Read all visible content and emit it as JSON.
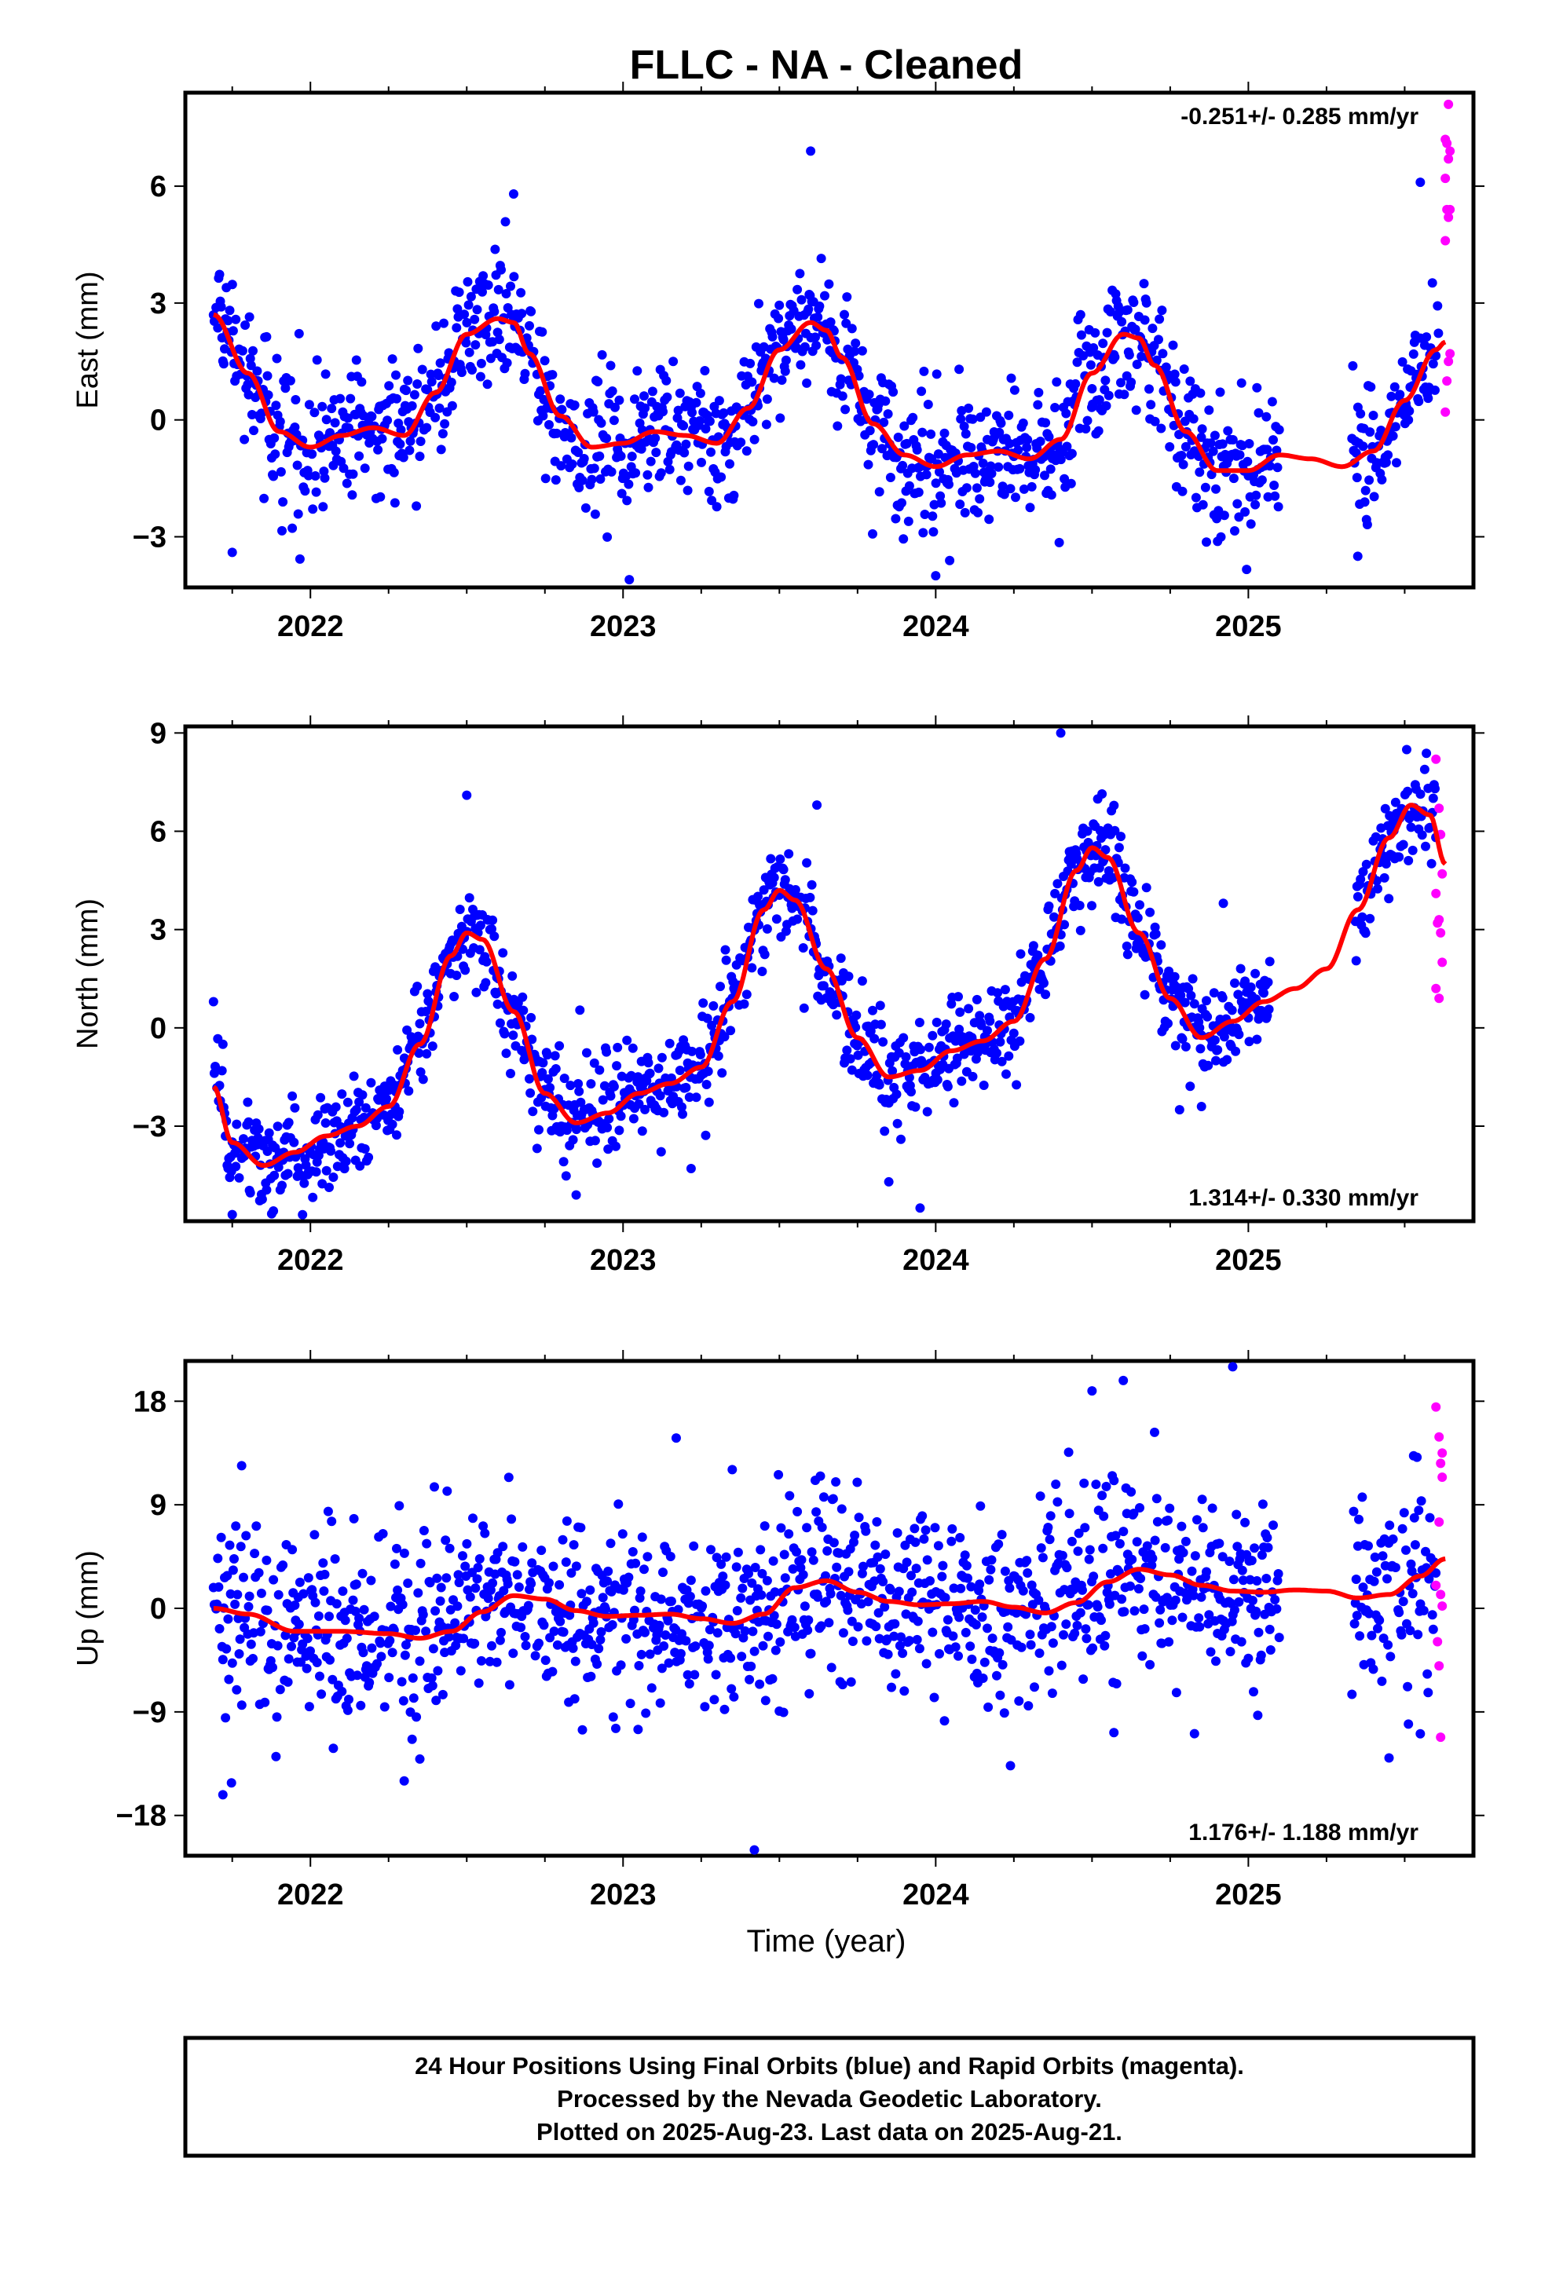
{
  "title": "FLLC  - NA - Cleaned",
  "xlabel": "Time (year)",
  "footer": {
    "line1": "24 Hour Positions Using Final Orbits (blue) and Rapid Orbits (magenta).",
    "line2": "Processed by the Nevada Geodetic Laboratory.",
    "line3": "Plotted on 2025-Aug-23. Last data on 2025-Aug-21."
  },
  "colors": {
    "final": "#0000ff",
    "rapid": "#ff00ff",
    "fit": "#ff0000",
    "frame": "#000000"
  },
  "chart_data": [
    {
      "type": "scatter",
      "panel": "east",
      "ylabel": "East (mm)",
      "rate": "-0.251+/- 0.285 mm/yr",
      "rate_placement": "top-right",
      "xlim": [
        2021.6,
        2025.72
      ],
      "ylim": [
        -4.3,
        8.4
      ],
      "yticks": [
        -3,
        0,
        3,
        6
      ],
      "ytick_labels": [
        "−3",
        "0",
        "3",
        "6"
      ],
      "xticks": [
        2022,
        2023,
        2024,
        2025
      ],
      "xtick_labels": [
        "2022",
        "2023",
        "2024",
        "2025"
      ],
      "grid": false,
      "fit_curve": {
        "name": "model",
        "x": [
          2021.69,
          2021.8,
          2021.9,
          2022.0,
          2022.1,
          2022.2,
          2022.3,
          2022.4,
          2022.5,
          2022.6,
          2022.65,
          2022.7,
          2022.8,
          2022.9,
          2023.0,
          2023.1,
          2023.2,
          2023.3,
          2023.4,
          2023.5,
          2023.6,
          2023.65,
          2023.7,
          2023.8,
          2023.9,
          2024.0,
          2024.1,
          2024.2,
          2024.3,
          2024.4,
          2024.5,
          2024.6,
          2024.65,
          2024.7,
          2024.8,
          2024.9,
          2025.0,
          2025.1,
          2025.2,
          2025.3,
          2025.4,
          2025.5,
          2025.6,
          2025.63
        ],
        "y": [
          2.7,
          1.2,
          -0.3,
          -0.7,
          -0.4,
          -0.2,
          -0.4,
          0.7,
          2.2,
          2.6,
          2.5,
          1.7,
          0.1,
          -0.7,
          -0.6,
          -0.3,
          -0.4,
          -0.6,
          0.3,
          1.8,
          2.5,
          2.3,
          1.6,
          -0.1,
          -0.9,
          -1.2,
          -0.9,
          -0.8,
          -1.0,
          -0.5,
          1.2,
          2.2,
          2.1,
          1.4,
          -0.3,
          -1.3,
          -1.3,
          -0.9,
          -1.0,
          -1.2,
          -0.8,
          0.5,
          1.8,
          2.0
        ]
      },
      "final_points": {
        "gaps": [
          [
            2025.1,
            2025.33
          ]
        ],
        "end": 2025.61,
        "scatter_mm": 0.85,
        "outliers": [
          [
            2023.02,
            -4.1
          ],
          [
            2023.6,
            6.9
          ],
          [
            2022.65,
            5.8
          ],
          [
            2021.75,
            -3.4
          ],
          [
            2025.35,
            -3.5
          ],
          [
            2024.0,
            -4.0
          ],
          [
            2024.5,
            0.8
          ],
          [
            2025.55,
            6.1
          ]
        ]
      },
      "rapid_points": {
        "x": [
          2025.63,
          2025.635,
          2025.64,
          2025.645,
          2025.63,
          2025.64,
          2025.635,
          2025.645,
          2025.63,
          2025.64,
          2025.645,
          2025.635,
          2025.63,
          2025.64
        ],
        "y": [
          0.2,
          1.0,
          1.5,
          1.7,
          4.6,
          5.2,
          5.4,
          5.4,
          6.2,
          6.7,
          6.9,
          7.1,
          7.2,
          8.1
        ]
      }
    },
    {
      "type": "scatter",
      "panel": "north",
      "ylabel": "North (mm)",
      "rate": "1.314+/- 0.330 mm/yr",
      "rate_placement": "bottom-right",
      "xlim": [
        2021.6,
        2025.72
      ],
      "ylim": [
        -5.9,
        9.2
      ],
      "yticks": [
        -3,
        0,
        3,
        6,
        9
      ],
      "ytick_labels": [
        "−3",
        "0",
        "3",
        "6",
        "9"
      ],
      "xticks": [
        2022,
        2023,
        2024,
        2025
      ],
      "xtick_labels": [
        "2022",
        "2023",
        "2024",
        "2025"
      ],
      "grid": false,
      "fit_curve": {
        "name": "model",
        "x": [
          2021.69,
          2021.75,
          2021.85,
          2021.95,
          2022.05,
          2022.15,
          2022.25,
          2022.35,
          2022.45,
          2022.5,
          2022.55,
          2022.65,
          2022.75,
          2022.85,
          2022.95,
          2023.05,
          2023.15,
          2023.25,
          2023.35,
          2023.45,
          2023.5,
          2023.55,
          2023.65,
          2023.75,
          2023.85,
          2023.95,
          2024.05,
          2024.15,
          2024.25,
          2024.35,
          2024.45,
          2024.5,
          2024.55,
          2024.65,
          2024.75,
          2024.85,
          2024.95,
          2025.05,
          2025.15,
          2025.25,
          2025.35,
          2025.45,
          2025.52,
          2025.58,
          2025.63
        ],
        "y": [
          -1.8,
          -3.5,
          -4.2,
          -3.8,
          -3.3,
          -3.0,
          -2.4,
          -0.5,
          2.2,
          2.9,
          2.7,
          0.5,
          -2.0,
          -2.9,
          -2.6,
          -2.0,
          -1.7,
          -1.2,
          0.8,
          3.6,
          4.2,
          3.9,
          1.8,
          -0.3,
          -1.5,
          -1.3,
          -0.7,
          -0.4,
          0.2,
          2.1,
          4.8,
          5.5,
          5.2,
          2.9,
          0.9,
          -0.3,
          0.2,
          0.8,
          1.2,
          1.8,
          3.6,
          5.8,
          6.8,
          6.5,
          5.0
        ]
      },
      "final_points": {
        "gaps": [
          [
            2025.07,
            2025.34
          ]
        ],
        "end": 2025.6,
        "scatter_mm": 0.75,
        "outliers": [
          [
            2021.69,
            0.8
          ],
          [
            2021.75,
            -5.7
          ],
          [
            2022.5,
            7.1
          ],
          [
            2022.85,
            -5.1
          ],
          [
            2023.62,
            6.8
          ],
          [
            2023.95,
            -5.5
          ],
          [
            2024.4,
            9.0
          ],
          [
            2024.92,
            3.8
          ],
          [
            2024.78,
            -2.5
          ],
          [
            2023.85,
            -4.7
          ],
          [
            2024.85,
            -2.4
          ]
        ]
      },
      "rapid_points": {
        "x": [
          2025.6,
          2025.61,
          2025.615,
          2025.62,
          2025.6,
          2025.61,
          2025.605,
          2025.615,
          2025.62,
          2025.6,
          2025.61
        ],
        "y": [
          8.2,
          6.7,
          5.9,
          4.7,
          4.1,
          3.3,
          3.2,
          2.9,
          2.0,
          1.2,
          0.9
        ]
      }
    },
    {
      "type": "scatter",
      "panel": "up",
      "ylabel": "Up (mm)",
      "rate": "1.176+/- 1.188 mm/yr",
      "rate_placement": "bottom-right",
      "xlim": [
        2021.6,
        2025.72
      ],
      "ylim": [
        -21.5,
        21.5
      ],
      "yticks": [
        -18,
        -9,
        0,
        9,
        18
      ],
      "ytick_labels": [
        "−18",
        "−9",
        "0",
        "9",
        "18"
      ],
      "xticks": [
        2022,
        2023,
        2024,
        2025
      ],
      "xtick_labels": [
        "2022",
        "2023",
        "2024",
        "2025"
      ],
      "grid": false,
      "fit_curve": {
        "name": "model",
        "x": [
          2021.69,
          2021.8,
          2021.95,
          2022.1,
          2022.25,
          2022.35,
          2022.45,
          2022.55,
          2022.65,
          2022.75,
          2022.85,
          2022.95,
          2023.05,
          2023.15,
          2023.25,
          2023.35,
          2023.45,
          2023.55,
          2023.65,
          2023.75,
          2023.85,
          2023.95,
          2024.05,
          2024.15,
          2024.25,
          2024.35,
          2024.45,
          2024.55,
          2024.65,
          2024.75,
          2024.85,
          2024.95,
          2025.05,
          2025.15,
          2025.25,
          2025.35,
          2025.45,
          2025.55,
          2025.63
        ],
        "y": [
          0.0,
          -0.5,
          -2.0,
          -2.0,
          -2.2,
          -2.6,
          -2.0,
          -0.3,
          1.1,
          0.8,
          -0.2,
          -0.7,
          -0.6,
          -0.5,
          -0.9,
          -1.3,
          -0.5,
          1.8,
          2.4,
          1.4,
          0.6,
          0.3,
          0.4,
          0.6,
          0.1,
          -0.4,
          0.5,
          2.3,
          3.4,
          2.9,
          2.0,
          1.5,
          1.4,
          1.6,
          1.5,
          0.9,
          1.2,
          2.8,
          4.3
        ]
      },
      "final_points": {
        "gaps": [
          [
            2025.1,
            2025.33
          ]
        ],
        "end": 2025.6,
        "scatter_mm": 4.2,
        "outliers": [
          [
            2021.72,
            -16.2
          ],
          [
            2021.78,
            12.4
          ],
          [
            2022.3,
            -15.0
          ],
          [
            2022.35,
            -13.1
          ],
          [
            2023.17,
            14.8
          ],
          [
            2023.42,
            -21.0
          ],
          [
            2024.5,
            18.9
          ],
          [
            2024.6,
            19.8
          ],
          [
            2024.57,
            -10.8
          ],
          [
            2024.95,
            21.0
          ],
          [
            2024.7,
            15.3
          ],
          [
            2025.45,
            -13.0
          ],
          [
            2025.55,
            -10.9
          ]
        ]
      },
      "rapid_points": {
        "x": [
          2025.6,
          2025.61,
          2025.62,
          2025.615,
          2025.62,
          2025.61,
          2025.6,
          2025.615,
          2025.62,
          2025.605,
          2025.61,
          2025.615
        ],
        "y": [
          17.5,
          14.9,
          13.5,
          12.6,
          11.4,
          7.5,
          2.0,
          1.2,
          0.2,
          -2.9,
          -5.0,
          -11.2
        ]
      }
    }
  ]
}
